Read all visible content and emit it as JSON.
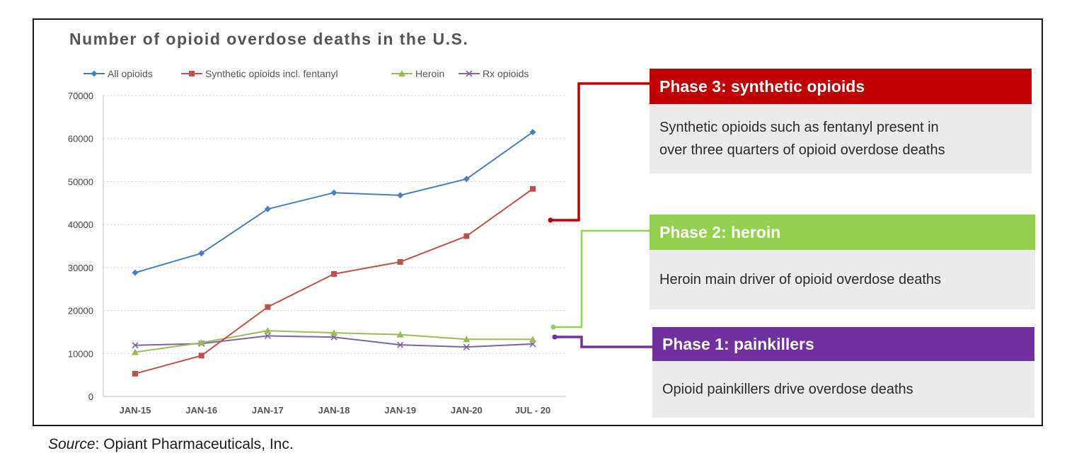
{
  "chart_data": {
    "type": "line",
    "title": "Number of opioid overdose deaths in the U.S.",
    "x": [
      "JAN-15",
      "JAN-16",
      "JAN-17",
      "JAN-18",
      "JAN-19",
      "JAN-20",
      "JUL - 20"
    ],
    "series": [
      {
        "name": "All opioids",
        "color": "#4a7ebf",
        "marker": "diamond",
        "values": [
          28800,
          33300,
          43600,
          47400,
          46800,
          50600,
          61500
        ]
      },
      {
        "name": "Synthetic opioids incl. fentanyl",
        "color": "#c0504d",
        "marker": "square",
        "values": [
          5300,
          9500,
          20800,
          28500,
          31300,
          37300,
          48300
        ]
      },
      {
        "name": "Heroin",
        "color": "#9bbb59",
        "marker": "triangle",
        "values": [
          10300,
          12500,
          15300,
          14800,
          14400,
          13300,
          13300
        ]
      },
      {
        "name": "Rx opioids",
        "color": "#8064a2",
        "marker": "x",
        "values": [
          11900,
          12300,
          14100,
          13800,
          12000,
          11500,
          12200
        ]
      }
    ],
    "y_ticks": [
      0,
      10000,
      20000,
      30000,
      40000,
      50000,
      60000,
      70000
    ],
    "ylim": [
      0,
      70000
    ],
    "grid": "dotted horizontal",
    "legend_position": "top"
  },
  "phases": [
    {
      "title": "Phase 3: synthetic opioids",
      "color": "#c00000",
      "lines": [
        "Synthetic opioids such as fentanyl present in",
        "over three quarters of opioid overdose deaths"
      ]
    },
    {
      "title": "Phase 2: heroin",
      "color": "#92d050",
      "lines": [
        "Heroin main driver of opioid overdose deaths"
      ]
    },
    {
      "title": "Phase 1: painkillers",
      "color": "#7030a0",
      "lines": [
        "Opioid  painkillers drive overdose deaths"
      ]
    }
  ],
  "source": {
    "label": "Source",
    "text": ": Opiant Pharmaceuticals, Inc."
  }
}
